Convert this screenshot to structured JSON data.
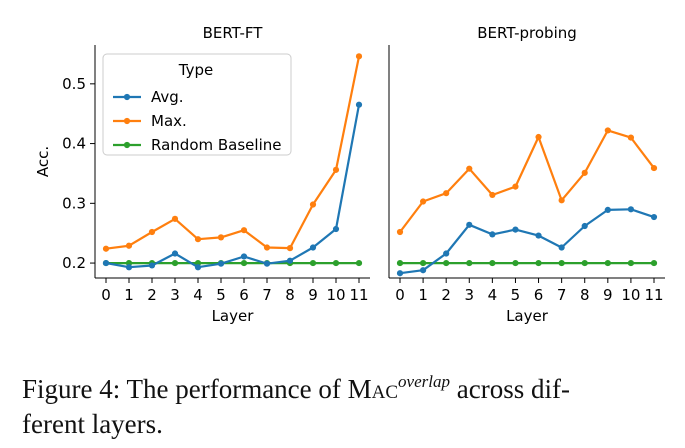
{
  "chart_data": [
    {
      "type": "line",
      "title": "BERT-FT",
      "xlabel": "Layer",
      "ylabel": "Acc.",
      "x": [
        0,
        1,
        2,
        3,
        4,
        5,
        6,
        7,
        8,
        9,
        10,
        11
      ],
      "ylim": [
        0.175,
        0.565
      ],
      "yticks": [
        "0.2",
        "0.3",
        "0.4",
        "0.5"
      ],
      "legend": {
        "title": "Type",
        "position": "top-left"
      },
      "series": [
        {
          "name": "Avg.",
          "color": "#1f77b4",
          "values": [
            0.2,
            0.193,
            0.196,
            0.216,
            0.193,
            0.199,
            0.211,
            0.199,
            0.204,
            0.226,
            0.257,
            0.465
          ]
        },
        {
          "name": "Max.",
          "color": "#ff7f0e",
          "values": [
            0.224,
            0.229,
            0.252,
            0.274,
            0.24,
            0.243,
            0.255,
            0.226,
            0.225,
            0.298,
            0.356,
            0.546
          ]
        },
        {
          "name": "Random Baseline",
          "color": "#2ca02c",
          "values": [
            0.2,
            0.2,
            0.2,
            0.2,
            0.2,
            0.2,
            0.2,
            0.2,
            0.2,
            0.2,
            0.2,
            0.2
          ]
        }
      ]
    },
    {
      "type": "line",
      "title": "BERT-probing",
      "xlabel": "Layer",
      "ylabel": "",
      "x": [
        0,
        1,
        2,
        3,
        4,
        5,
        6,
        7,
        8,
        9,
        10,
        11
      ],
      "ylim": [
        0.175,
        0.565
      ],
      "series": [
        {
          "name": "Avg.",
          "color": "#1f77b4",
          "values": [
            0.183,
            0.188,
            0.216,
            0.264,
            0.248,
            0.256,
            0.246,
            0.226,
            0.262,
            0.289,
            0.29,
            0.277
          ]
        },
        {
          "name": "Max.",
          "color": "#ff7f0e",
          "values": [
            0.252,
            0.303,
            0.317,
            0.358,
            0.314,
            0.328,
            0.411,
            0.305,
            0.351,
            0.422,
            0.41,
            0.359
          ]
        },
        {
          "name": "Random Baseline",
          "color": "#2ca02c",
          "values": [
            0.2,
            0.2,
            0.2,
            0.2,
            0.2,
            0.2,
            0.2,
            0.2,
            0.2,
            0.2,
            0.2,
            0.2
          ]
        }
      ]
    }
  ],
  "caption": {
    "prefix": "Figure 4:  The performance of ",
    "mac": "Mac",
    "superscript": "overlap",
    "suffix": " across dif-",
    "line2": "ferent layers."
  }
}
